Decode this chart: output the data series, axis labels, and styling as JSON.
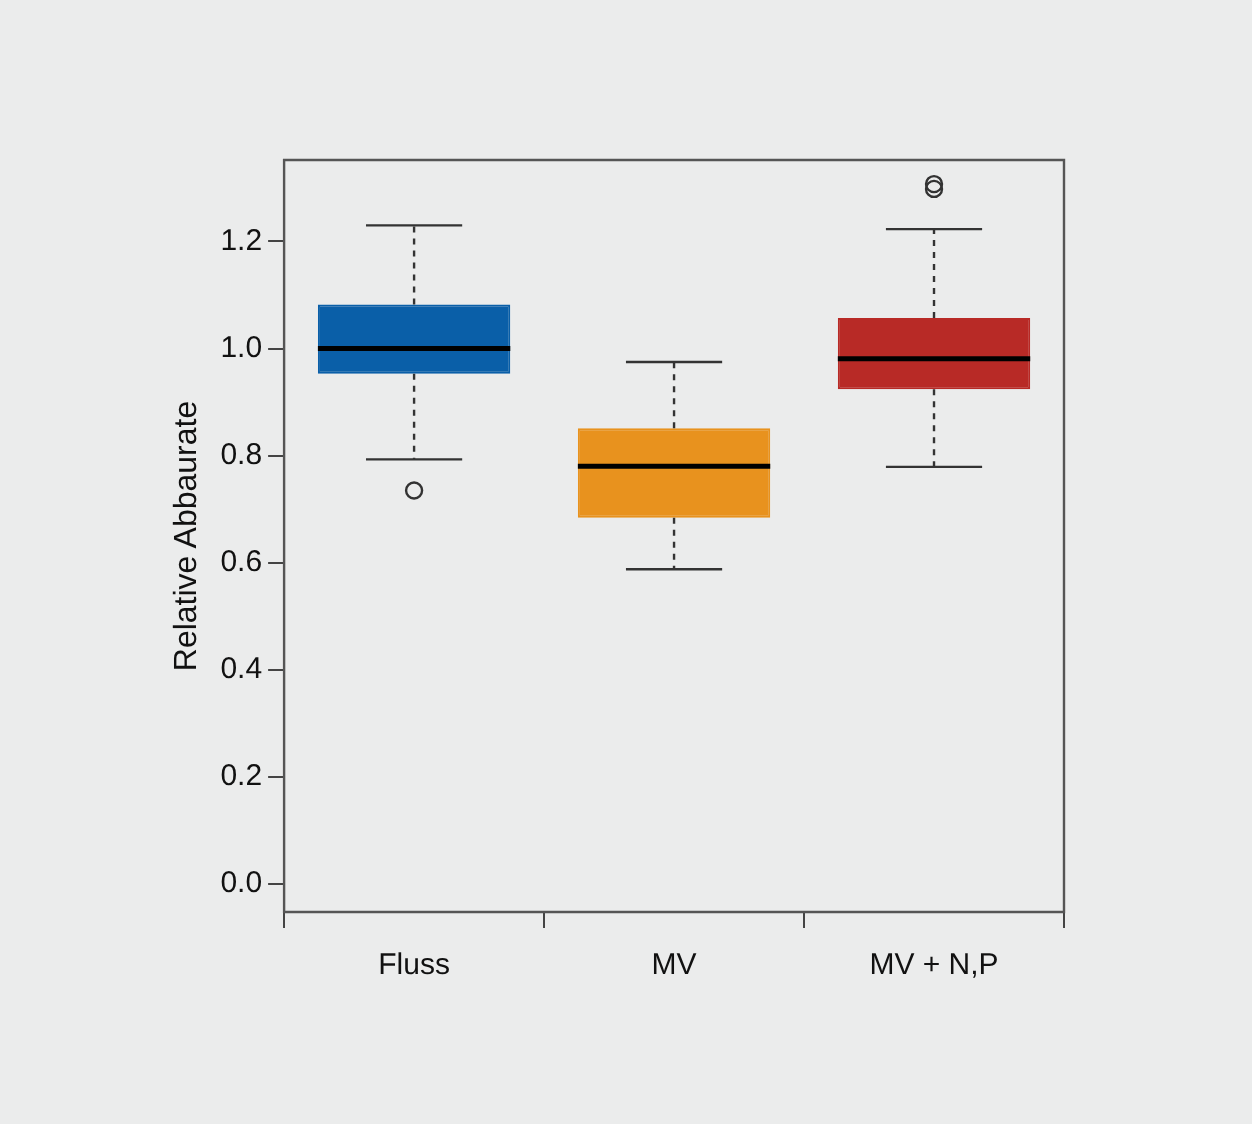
{
  "chart_data": {
    "type": "box",
    "ylabel": "Relative Abbaurate",
    "categories": [
      "Fluss",
      "MV",
      "MV + N,P"
    ],
    "colors": [
      "#0a5fa8",
      "#e8921e",
      "#b82a26"
    ],
    "boxes": [
      {
        "low": 0.793,
        "q1": 0.953,
        "median": 1.0,
        "q3": 1.082,
        "high": 1.23,
        "outliers": [
          0.735
        ]
      },
      {
        "low": 0.588,
        "q1": 0.684,
        "median": 0.78,
        "q3": 0.851,
        "high": 0.975
      },
      {
        "low": 0.779,
        "q1": 0.924,
        "median": 0.981,
        "q3": 1.057,
        "high": 1.223,
        "outliers": [
          1.307,
          1.298
        ]
      }
    ],
    "ylim": [
      -0.052,
      1.352
    ],
    "yticks": [
      {
        "value": 0,
        "label": "0.0"
      },
      {
        "value": 0.2,
        "label": "0.2"
      },
      {
        "value": 0.4,
        "label": "0.4"
      },
      {
        "value": 0.6,
        "label": "0.6"
      },
      {
        "value": 0.8,
        "label": "0.8"
      },
      {
        "value": 1,
        "label": "1.0"
      },
      {
        "value": 1.2,
        "label": "1.2"
      }
    ],
    "grid": false,
    "legend": false
  }
}
